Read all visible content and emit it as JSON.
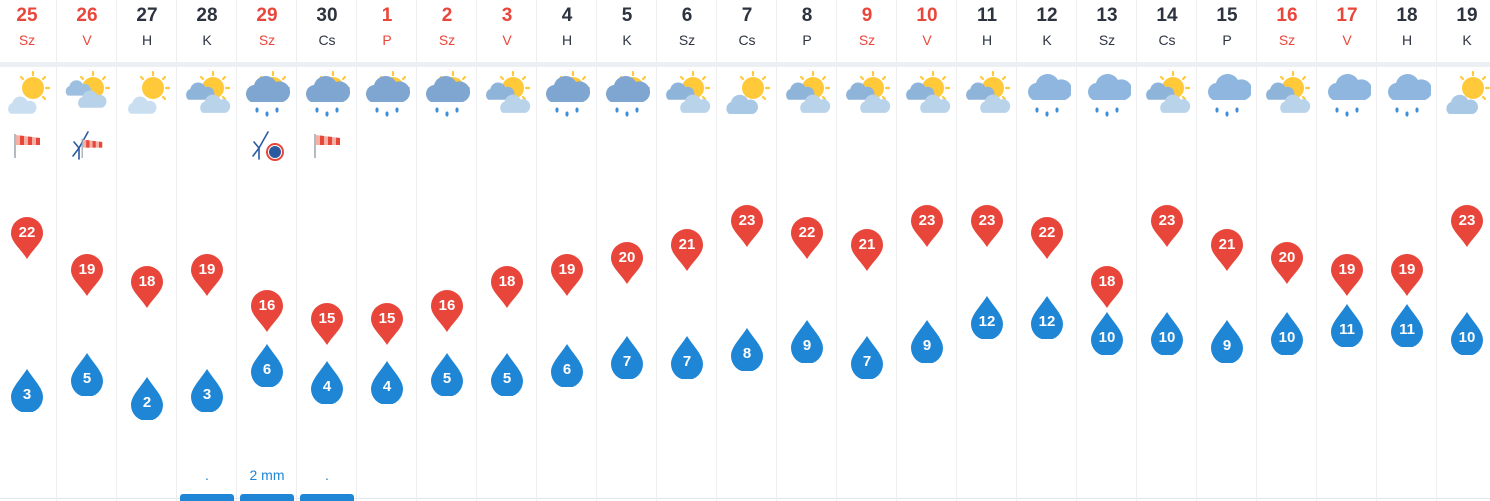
{
  "colors": {
    "max_pin": "#e9463b",
    "min_drop": "#1f86d6",
    "weekend_text": "#e9463b",
    "weekday_text": "#2d3440",
    "precip_text": "#1f86d6"
  },
  "days": [
    {
      "day": "25",
      "abbr": "Sz",
      "red": true,
      "icon": "sun-cloud",
      "wind": "windsock",
      "max": "22",
      "min": "3",
      "precip": ""
    },
    {
      "day": "26",
      "abbr": "V",
      "red": true,
      "icon": "cloud-sun",
      "wind": "wind-turbine-sock",
      "max": "19",
      "min": "5",
      "precip": ""
    },
    {
      "day": "27",
      "abbr": "H",
      "red": false,
      "icon": "sun-cloud",
      "wind": "",
      "max": "18",
      "min": "2",
      "precip": ""
    },
    {
      "day": "28",
      "abbr": "K",
      "red": false,
      "icon": "sun-clouds",
      "wind": "",
      "max": "19",
      "min": "3",
      "precip": "."
    },
    {
      "day": "29",
      "abbr": "Sz",
      "red": true,
      "icon": "rain-cloud-sun",
      "wind": "wind-turbine-alert",
      "max": "16",
      "min": "6",
      "precip": "2 mm"
    },
    {
      "day": "30",
      "abbr": "Cs",
      "red": false,
      "icon": "rain-cloud-sun",
      "wind": "windsock",
      "max": "15",
      "min": "4",
      "precip": "."
    },
    {
      "day": "1",
      "abbr": "P",
      "red": true,
      "icon": "rain-cloud-sun",
      "wind": "",
      "max": "15",
      "min": "4",
      "precip": ""
    },
    {
      "day": "2",
      "abbr": "Sz",
      "red": true,
      "icon": "rain-cloud-sun",
      "wind": "",
      "max": "16",
      "min": "5",
      "precip": ""
    },
    {
      "day": "3",
      "abbr": "V",
      "red": true,
      "icon": "sun-clouds",
      "wind": "",
      "max": "18",
      "min": "5",
      "precip": ""
    },
    {
      "day": "4",
      "abbr": "H",
      "red": false,
      "icon": "rain-cloud-sun",
      "wind": "",
      "max": "19",
      "min": "6",
      "precip": ""
    },
    {
      "day": "5",
      "abbr": "K",
      "red": false,
      "icon": "rain-cloud-sun",
      "wind": "",
      "max": "20",
      "min": "7",
      "precip": ""
    },
    {
      "day": "6",
      "abbr": "Sz",
      "red": false,
      "icon": "sun-clouds",
      "wind": "",
      "max": "21",
      "min": "7",
      "precip": ""
    },
    {
      "day": "7",
      "abbr": "Cs",
      "red": false,
      "icon": "sun-cloud-small",
      "wind": "",
      "max": "23",
      "min": "8",
      "precip": ""
    },
    {
      "day": "8",
      "abbr": "P",
      "red": false,
      "icon": "sun-clouds",
      "wind": "",
      "max": "22",
      "min": "9",
      "precip": ""
    },
    {
      "day": "9",
      "abbr": "Sz",
      "red": true,
      "icon": "sun-clouds",
      "wind": "",
      "max": "21",
      "min": "7",
      "precip": ""
    },
    {
      "day": "10",
      "abbr": "V",
      "red": true,
      "icon": "sun-clouds",
      "wind": "",
      "max": "23",
      "min": "9",
      "precip": ""
    },
    {
      "day": "11",
      "abbr": "H",
      "red": false,
      "icon": "sun-clouds",
      "wind": "",
      "max": "23",
      "min": "12",
      "precip": ""
    },
    {
      "day": "12",
      "abbr": "K",
      "red": false,
      "icon": "rain-cloud",
      "wind": "",
      "max": "22",
      "min": "12",
      "precip": ""
    },
    {
      "day": "13",
      "abbr": "Sz",
      "red": false,
      "icon": "rain-cloud",
      "wind": "",
      "max": "18",
      "min": "10",
      "precip": ""
    },
    {
      "day": "14",
      "abbr": "Cs",
      "red": false,
      "icon": "sun-clouds",
      "wind": "",
      "max": "23",
      "min": "10",
      "precip": ""
    },
    {
      "day": "15",
      "abbr": "P",
      "red": false,
      "icon": "rain-cloud",
      "wind": "",
      "max": "21",
      "min": "9",
      "precip": ""
    },
    {
      "day": "16",
      "abbr": "Sz",
      "red": true,
      "icon": "sun-clouds",
      "wind": "",
      "max": "20",
      "min": "10",
      "precip": ""
    },
    {
      "day": "17",
      "abbr": "V",
      "red": true,
      "icon": "rain-cloud",
      "wind": "",
      "max": "19",
      "min": "11",
      "precip": ""
    },
    {
      "day": "18",
      "abbr": "H",
      "red": false,
      "icon": "rain-cloud",
      "wind": "",
      "max": "19",
      "min": "11",
      "precip": ""
    },
    {
      "day": "19",
      "abbr": "K",
      "red": false,
      "icon": "sun-cloud-small",
      "wind": "",
      "max": "23",
      "min": "10",
      "precip": ""
    }
  ],
  "precip_bars": [
    {
      "day": "28",
      "level": 0.2
    },
    {
      "day": "29",
      "level": 1.0
    },
    {
      "day": "30",
      "level": 0.2
    }
  ]
}
